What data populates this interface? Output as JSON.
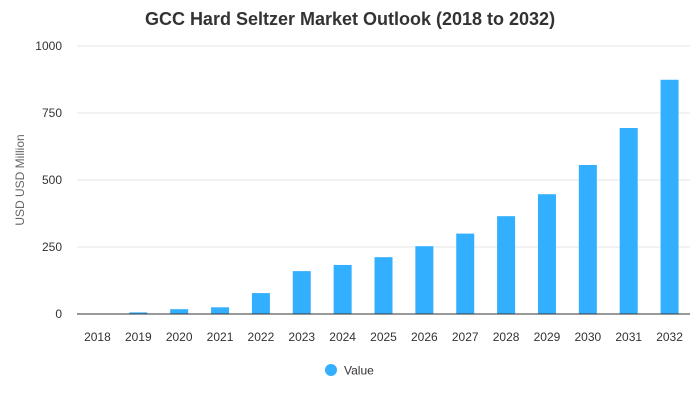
{
  "chart_data": {
    "type": "bar",
    "title": "GCC Hard Seltzer Market Outlook (2018 to 2032)",
    "xlabel": "",
    "ylabel": "USD USD Million",
    "categories": [
      "2018",
      "2019",
      "2020",
      "2021",
      "2022",
      "2023",
      "2024",
      "2025",
      "2026",
      "2027",
      "2028",
      "2029",
      "2030",
      "2031",
      "2032"
    ],
    "series": [
      {
        "name": "Value",
        "color": "#33afff",
        "values": [
          0,
          6,
          18,
          25,
          78,
          160,
          183,
          212,
          253,
          300,
          365,
          447,
          556,
          694,
          874
        ]
      }
    ],
    "ylim": [
      0,
      1000
    ],
    "yticks": [
      0,
      250,
      500,
      750,
      1000
    ],
    "grid": true,
    "legend_position": "bottom-center"
  }
}
